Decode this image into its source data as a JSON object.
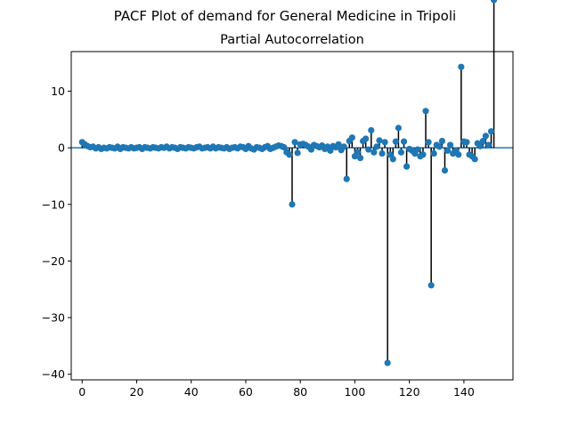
{
  "figure": {
    "suptitle": "PACF Plot of demand for General Medicine in Tripoli"
  },
  "chart_data": {
    "type": "stem",
    "title": "Partial Autocorrelation",
    "xlabel": "",
    "ylabel": "",
    "xlim": [
      -4,
      158
    ],
    "ylim": [
      -41,
      17
    ],
    "xticks": [
      0,
      20,
      40,
      60,
      80,
      100,
      120,
      140
    ],
    "yticks": [
      10,
      0,
      -10,
      -20,
      -30,
      -40
    ],
    "zero_line": true,
    "grid": false,
    "colors": {
      "marker": "#1f77b4",
      "stem": "#000000",
      "zero_line": "#1f77b4"
    },
    "lags": [
      0,
      1,
      2,
      3,
      4,
      5,
      6,
      7,
      8,
      9,
      10,
      11,
      12,
      13,
      14,
      15,
      16,
      17,
      18,
      19,
      20,
      21,
      22,
      23,
      24,
      25,
      26,
      27,
      28,
      29,
      30,
      31,
      32,
      33,
      34,
      35,
      36,
      37,
      38,
      39,
      40,
      41,
      42,
      43,
      44,
      45,
      46,
      47,
      48,
      49,
      50,
      51,
      52,
      53,
      54,
      55,
      56,
      57,
      58,
      59,
      60,
      61,
      62,
      63,
      64,
      65,
      66,
      67,
      68,
      69,
      70,
      71,
      72,
      73,
      74,
      75,
      76,
      77,
      78,
      79,
      80,
      81,
      82,
      83,
      84,
      85,
      86,
      87,
      88,
      89,
      90,
      91,
      92,
      93,
      94,
      95,
      96,
      97,
      98,
      99,
      100,
      101,
      102,
      103,
      104,
      105,
      106,
      107,
      108,
      109,
      110,
      111,
      112,
      113,
      114,
      115,
      116,
      117,
      118,
      119,
      120,
      121,
      122,
      123,
      124,
      125,
      126,
      127,
      128,
      129,
      130,
      131,
      132,
      133,
      134,
      135,
      136,
      137,
      138,
      139,
      140,
      141,
      142,
      143,
      144,
      145,
      146,
      147,
      148,
      149,
      150,
      151
    ],
    "values": [
      1.0,
      0.6,
      0.3,
      0.1,
      0.2,
      -0.1,
      0.1,
      -0.2,
      0.0,
      -0.1,
      0.1,
      0.0,
      -0.1,
      0.2,
      -0.2,
      0.1,
      0.0,
      -0.1,
      0.1,
      -0.1,
      0.0,
      0.1,
      -0.2,
      0.1,
      0.0,
      -0.1,
      0.1,
      0.0,
      -0.1,
      0.1,
      0.0,
      0.2,
      -0.1,
      0.1,
      0.0,
      -0.2,
      0.1,
      0.0,
      -0.1,
      0.1,
      0.0,
      -0.1,
      0.1,
      0.2,
      -0.1,
      0.0,
      0.1,
      -0.1,
      0.2,
      -0.1,
      0.1,
      0.0,
      -0.1,
      0.1,
      -0.2,
      0.0,
      0.1,
      -0.1,
      0.2,
      0.1,
      -0.2,
      0.3,
      -0.1,
      -0.3,
      0.1,
      0.0,
      -0.2,
      0.1,
      0.3,
      -0.2,
      0.0,
      0.2,
      0.4,
      0.3,
      0.1,
      -0.8,
      -1.2,
      -10.0,
      1.0,
      -0.9,
      0.6,
      0.7,
      0.5,
      0.2,
      -0.3,
      0.5,
      0.3,
      0.1,
      0.4,
      -0.2,
      0.2,
      -0.5,
      0.3,
      0.1,
      0.6,
      -0.4,
      0.2,
      -5.5,
      1.2,
      1.8,
      -1.5,
      -0.8,
      -1.8,
      1.2,
      1.6,
      -0.3,
      3.1,
      -0.8,
      0.2,
      1.3,
      -1.0,
      1.0,
      -38.0,
      -1.2,
      -2.0,
      1.1,
      3.5,
      -0.8,
      1.1,
      -3.3,
      -0.2,
      -0.5,
      -1.0,
      -0.3,
      -1.5,
      -1.2,
      6.5,
      1.0,
      -24.3,
      -1.0,
      0.5,
      0.2,
      1.2,
      -4.0,
      -0.5,
      0.5,
      -1.0,
      -0.5,
      -1.2,
      14.3,
      1.1,
      1.0,
      -1.2,
      -1.5,
      -2.0,
      0.8,
      0.3,
      1.2,
      2.1,
      0.5,
      2.9
    ]
  }
}
